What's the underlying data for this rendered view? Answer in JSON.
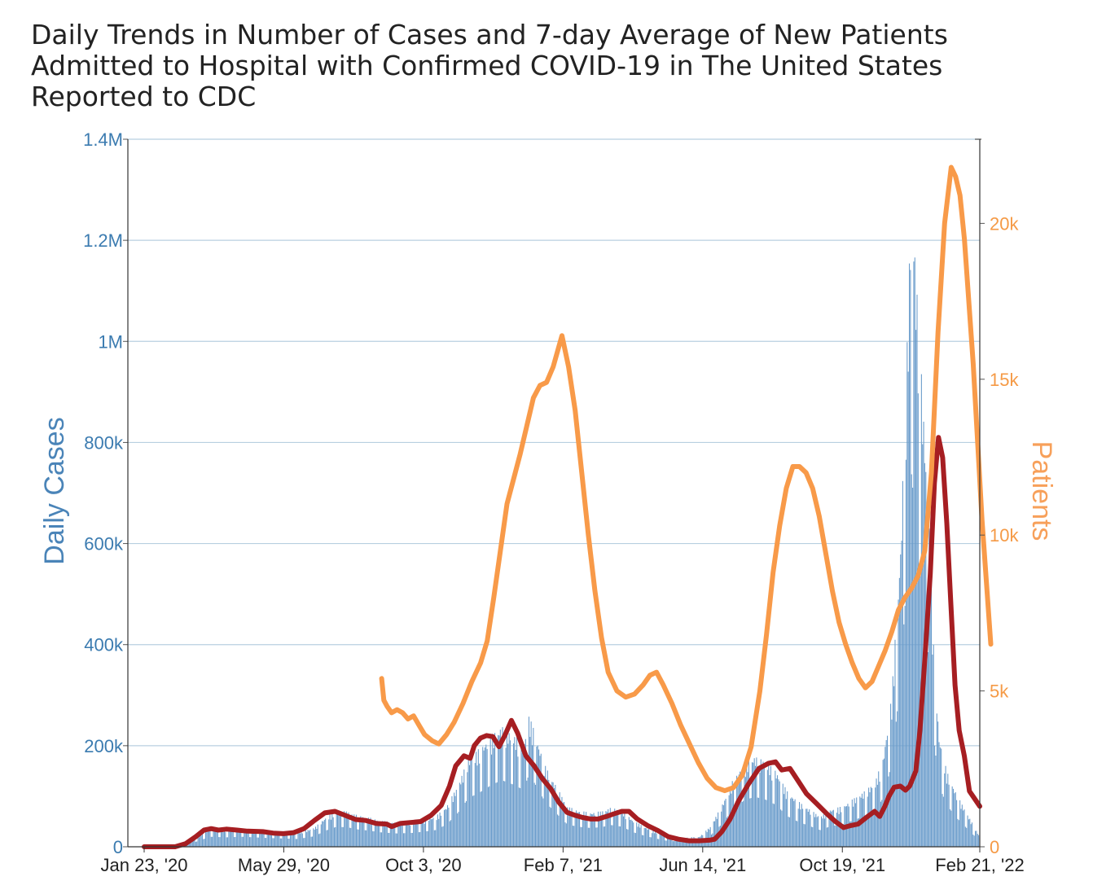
{
  "title_lines": [
    "Daily Trends in Number of Cases and 7-day Average of New Patients",
    "Admitted to Hospital with Confirmed COVID-19 in The United States",
    "Reported to CDC"
  ],
  "chart_data": {
    "type": "bar+line",
    "title": "Daily Trends in Number of Cases and 7-day Average of New Patients Admitted to Hospital with Confirmed COVID-19 in The United States Reported to CDC",
    "ylabel_left": "Daily Cases",
    "ylabel_right": "Patients",
    "ylim_left": [
      0,
      1400000
    ],
    "ylim_right": [
      0,
      22700
    ],
    "y_ticks_left": [
      {
        "value": 0,
        "label": "0"
      },
      {
        "value": 200000,
        "label": "200k"
      },
      {
        "value": 400000,
        "label": "400k"
      },
      {
        "value": 600000,
        "label": "600k"
      },
      {
        "value": 800000,
        "label": "800k"
      },
      {
        "value": 1000000,
        "label": "1M"
      },
      {
        "value": 1200000,
        "label": "1.2M"
      },
      {
        "value": 1400000,
        "label": "1.4M"
      }
    ],
    "y_ticks_right": [
      {
        "value": 0,
        "label": "0"
      },
      {
        "value": 5000,
        "label": "5k"
      },
      {
        "value": 10000,
        "label": "10k"
      },
      {
        "value": 15000,
        "label": "15k"
      },
      {
        "value": 20000,
        "label": "20k"
      }
    ],
    "x_range_days": [
      0,
      760
    ],
    "x_ticks": [
      {
        "day": 0,
        "label": "Jan 23, '20"
      },
      {
        "day": 127,
        "label": "May 29, '20"
      },
      {
        "day": 254,
        "label": "Oct 3, '20"
      },
      {
        "day": 381,
        "label": "Feb 7, '21"
      },
      {
        "day": 508,
        "label": "Jun 14, '21"
      },
      {
        "day": 635,
        "label": "Oct 19, '21"
      },
      {
        "day": 760,
        "label": "Feb 21, '22"
      }
    ],
    "grid": true,
    "colors": {
      "bars": "#6a9ccb",
      "cases_avg_line": "#a61e22",
      "patients_line": "#f89a49",
      "grid": "#b8cfe0",
      "left_axis": "#3b7bb0",
      "right_axis": "#f59a46"
    },
    "series": [
      {
        "name": "Daily Cases (bars, envelope)",
        "axis": "left",
        "kind": "bar",
        "points": [
          [
            0,
            0
          ],
          [
            30,
            0
          ],
          [
            45,
            15000
          ],
          [
            60,
            36000
          ],
          [
            75,
            34000
          ],
          [
            90,
            36000
          ],
          [
            110,
            32000
          ],
          [
            125,
            30000
          ],
          [
            140,
            28000
          ],
          [
            155,
            38000
          ],
          [
            165,
            58000
          ],
          [
            175,
            72000
          ],
          [
            185,
            70000
          ],
          [
            195,
            62000
          ],
          [
            205,
            58000
          ],
          [
            215,
            52000
          ],
          [
            230,
            48000
          ],
          [
            245,
            50000
          ],
          [
            255,
            55000
          ],
          [
            265,
            60000
          ],
          [
            275,
            80000
          ],
          [
            285,
            120000
          ],
          [
            295,
            175000
          ],
          [
            305,
            195000
          ],
          [
            315,
            220000
          ],
          [
            325,
            240000
          ],
          [
            335,
            225000
          ],
          [
            345,
            205000
          ],
          [
            350,
            260000
          ],
          [
            355,
            230000
          ],
          [
            365,
            160000
          ],
          [
            375,
            120000
          ],
          [
            385,
            80000
          ],
          [
            395,
            72000
          ],
          [
            405,
            68000
          ],
          [
            415,
            70000
          ],
          [
            425,
            78000
          ],
          [
            435,
            72000
          ],
          [
            445,
            52000
          ],
          [
            455,
            40000
          ],
          [
            465,
            30000
          ],
          [
            475,
            22000
          ],
          [
            490,
            18000
          ],
          [
            505,
            20000
          ],
          [
            515,
            40000
          ],
          [
            525,
            80000
          ],
          [
            535,
            130000
          ],
          [
            545,
            165000
          ],
          [
            555,
            180000
          ],
          [
            565,
            170000
          ],
          [
            575,
            150000
          ],
          [
            585,
            110000
          ],
          [
            595,
            90000
          ],
          [
            605,
            75000
          ],
          [
            615,
            60000
          ],
          [
            625,
            75000
          ],
          [
            635,
            80000
          ],
          [
            645,
            95000
          ],
          [
            655,
            110000
          ],
          [
            665,
            130000
          ],
          [
            672,
            175000
          ],
          [
            680,
            300000
          ],
          [
            688,
            600000
          ],
          [
            694,
            1000000
          ],
          [
            698,
            1340000
          ],
          [
            703,
            1100000
          ],
          [
            708,
            900000
          ],
          [
            713,
            700000
          ],
          [
            718,
            400000
          ],
          [
            723,
            220000
          ],
          [
            730,
            150000
          ],
          [
            740,
            100000
          ],
          [
            750,
            60000
          ],
          [
            760,
            20000
          ]
        ]
      },
      {
        "name": "Daily Cases 7-day average",
        "axis": "left",
        "kind": "line",
        "points": [
          [
            0,
            0
          ],
          [
            30,
            0
          ],
          [
            40,
            6000
          ],
          [
            50,
            20000
          ],
          [
            58,
            33000
          ],
          [
            65,
            36000
          ],
          [
            72,
            33000
          ],
          [
            80,
            35000
          ],
          [
            90,
            33000
          ],
          [
            100,
            31000
          ],
          [
            115,
            30000
          ],
          [
            125,
            27000
          ],
          [
            135,
            26000
          ],
          [
            145,
            28000
          ],
          [
            155,
            36000
          ],
          [
            165,
            52000
          ],
          [
            175,
            67000
          ],
          [
            185,
            70000
          ],
          [
            195,
            62000
          ],
          [
            205,
            54000
          ],
          [
            215,
            52000
          ],
          [
            225,
            46000
          ],
          [
            235,
            45000
          ],
          [
            240,
            40000
          ],
          [
            248,
            46000
          ],
          [
            258,
            48000
          ],
          [
            268,
            50000
          ],
          [
            278,
            62000
          ],
          [
            288,
            82000
          ],
          [
            296,
            120000
          ],
          [
            302,
            160000
          ],
          [
            310,
            180000
          ],
          [
            316,
            175000
          ],
          [
            320,
            200000
          ],
          [
            326,
            215000
          ],
          [
            332,
            220000
          ],
          [
            338,
            218000
          ],
          [
            344,
            198000
          ],
          [
            350,
            222000
          ],
          [
            356,
            250000
          ],
          [
            362,
            225000
          ],
          [
            370,
            180000
          ],
          [
            378,
            160000
          ],
          [
            386,
            135000
          ],
          [
            394,
            115000
          ],
          [
            402,
            88000
          ],
          [
            410,
            68000
          ],
          [
            418,
            62000
          ],
          [
            425,
            58000
          ],
          [
            433,
            55000
          ],
          [
            440,
            55000
          ],
          [
            448,
            60000
          ],
          [
            455,
            65000
          ],
          [
            463,
            70000
          ],
          [
            470,
            70000
          ],
          [
            478,
            55000
          ],
          [
            488,
            42000
          ],
          [
            498,
            32000
          ],
          [
            508,
            20000
          ],
          [
            518,
            15000
          ],
          [
            528,
            12000
          ],
          [
            538,
            12000
          ],
          [
            548,
            13000
          ],
          [
            553,
            15000
          ],
          [
            560,
            30000
          ],
          [
            568,
            55000
          ],
          [
            576,
            90000
          ],
          [
            586,
            125000
          ],
          [
            596,
            155000
          ],
          [
            605,
            165000
          ],
          [
            612,
            168000
          ],
          [
            618,
            152000
          ],
          [
            626,
            155000
          ],
          [
            634,
            130000
          ],
          [
            642,
            105000
          ],
          [
            652,
            85000
          ],
          [
            662,
            65000
          ],
          [
            670,
            50000
          ],
          [
            678,
            38000
          ],
          [
            685,
            42000
          ],
          [
            692,
            45000
          ],
          [
            700,
            58000
          ],
          [
            708,
            70000
          ],
          [
            713,
            60000
          ],
          [
            718,
            80000
          ],
          [
            722,
            100000
          ],
          [
            727,
            118000
          ],
          [
            733,
            120000
          ],
          [
            738,
            112000
          ],
          [
            742,
            120000
          ],
          [
            748,
            150000
          ],
          [
            752,
            230000
          ],
          [
            757,
            380000
          ],
          [
            762,
            540000
          ],
          [
            766,
            720000
          ],
          [
            770,
            810000
          ],
          [
            774,
            770000
          ],
          [
            778,
            640000
          ],
          [
            782,
            480000
          ],
          [
            786,
            320000
          ],
          [
            790,
            230000
          ],
          [
            795,
            180000
          ],
          [
            800,
            110000
          ],
          [
            805,
            95000
          ],
          [
            810,
            80000
          ]
        ]
      },
      {
        "name": "7-day Average of New Patients Admitted (Patients)",
        "axis": "right",
        "kind": "line",
        "points": [
          [
            216,
            5400
          ],
          [
            218,
            4700
          ],
          [
            221,
            4500
          ],
          [
            225,
            4300
          ],
          [
            230,
            4400
          ],
          [
            235,
            4300
          ],
          [
            240,
            4100
          ],
          [
            245,
            4200
          ],
          [
            250,
            3900
          ],
          [
            255,
            3600
          ],
          [
            262,
            3400
          ],
          [
            268,
            3300
          ],
          [
            275,
            3600
          ],
          [
            282,
            4000
          ],
          [
            290,
            4600
          ],
          [
            298,
            5300
          ],
          [
            306,
            5900
          ],
          [
            312,
            6600
          ],
          [
            318,
            8000
          ],
          [
            324,
            9500
          ],
          [
            330,
            11000
          ],
          [
            336,
            11800
          ],
          [
            342,
            12600
          ],
          [
            348,
            13500
          ],
          [
            354,
            14400
          ],
          [
            360,
            14800
          ],
          [
            366,
            14900
          ],
          [
            372,
            15400
          ],
          [
            376,
            15900
          ],
          [
            380,
            16400
          ],
          [
            386,
            15400
          ],
          [
            392,
            14000
          ],
          [
            398,
            12000
          ],
          [
            404,
            10000
          ],
          [
            410,
            8200
          ],
          [
            416,
            6700
          ],
          [
            422,
            5600
          ],
          [
            430,
            5000
          ],
          [
            438,
            4800
          ],
          [
            446,
            4900
          ],
          [
            454,
            5200
          ],
          [
            460,
            5500
          ],
          [
            466,
            5600
          ],
          [
            472,
            5200
          ],
          [
            480,
            4600
          ],
          [
            488,
            3900
          ],
          [
            496,
            3300
          ],
          [
            504,
            2700
          ],
          [
            512,
            2200
          ],
          [
            520,
            1900
          ],
          [
            528,
            1800
          ],
          [
            536,
            1900
          ],
          [
            544,
            2300
          ],
          [
            552,
            3200
          ],
          [
            560,
            5000
          ],
          [
            566,
            6800
          ],
          [
            572,
            8800
          ],
          [
            578,
            10300
          ],
          [
            584,
            11500
          ],
          [
            590,
            12200
          ],
          [
            596,
            12200
          ],
          [
            602,
            12000
          ],
          [
            608,
            11500
          ],
          [
            614,
            10600
          ],
          [
            620,
            9400
          ],
          [
            626,
            8200
          ],
          [
            632,
            7200
          ],
          [
            638,
            6500
          ],
          [
            644,
            5900
          ],
          [
            650,
            5400
          ],
          [
            656,
            5100
          ],
          [
            662,
            5300
          ],
          [
            668,
            5800
          ],
          [
            674,
            6300
          ],
          [
            680,
            6900
          ],
          [
            686,
            7600
          ],
          [
            692,
            8000
          ],
          [
            698,
            8300
          ],
          [
            704,
            8700
          ],
          [
            710,
            9500
          ],
          [
            716,
            12000
          ],
          [
            722,
            16500
          ],
          [
            728,
            20000
          ],
          [
            734,
            21800
          ],
          [
            738,
            21500
          ],
          [
            742,
            20900
          ],
          [
            746,
            19500
          ],
          [
            750,
            17500
          ],
          [
            754,
            15500
          ],
          [
            758,
            13000
          ],
          [
            762,
            10500
          ],
          [
            766,
            8500
          ],
          [
            770,
            6500
          ]
        ]
      }
    ]
  }
}
